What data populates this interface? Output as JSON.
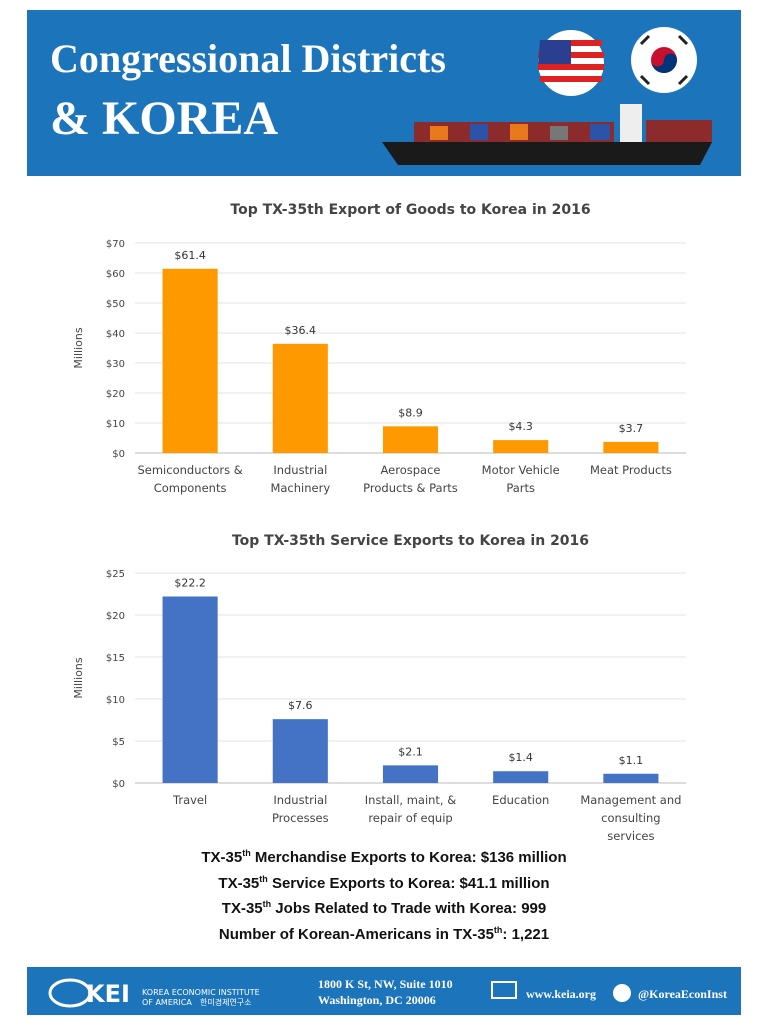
{
  "header": {
    "title_line1": "Congressional Districts",
    "title_line2": "& KOREA"
  },
  "chart_data": [
    {
      "type": "bar",
      "title": "Top TX-35th Export of Goods to Korea in 2016",
      "y_label": "Millions",
      "categories": [
        "Semiconductors & Components",
        "Industrial Machinery",
        "Aerospace Products & Parts",
        "Motor Vehicle Parts",
        "Meat Products"
      ],
      "values": [
        61.4,
        36.4,
        8.9,
        4.3,
        3.7
      ],
      "value_labels": [
        "$61.4",
        "$36.4",
        "$8.9",
        "$4.3",
        "$3.7"
      ],
      "color": "#ff9900",
      "ylim": [
        0,
        70
      ],
      "yticks": [
        {
          "value": 0,
          "label": "$0"
        },
        {
          "value": 10,
          "label": "$10"
        },
        {
          "value": 20,
          "label": "$20"
        },
        {
          "value": 30,
          "label": "$30"
        },
        {
          "value": 40,
          "label": "$40"
        },
        {
          "value": 50,
          "label": "$50"
        },
        {
          "value": 60,
          "label": "$60"
        },
        {
          "value": 70,
          "label": "$70"
        }
      ],
      "grid": true
    },
    {
      "type": "bar",
      "title": "Top TX-35th Service Exports to Korea in 2016",
      "y_label": "Millions",
      "categories": [
        "Travel",
        "Industrial Processes",
        "Install, maint, & repair of equip",
        "Education",
        "Management and consulting services"
      ],
      "values": [
        22.2,
        7.6,
        2.1,
        1.4,
        1.1
      ],
      "value_labels": [
        "$22.2",
        "$7.6",
        "$2.1",
        "$1.4",
        "$1.1"
      ],
      "color": "#4472c4",
      "ylim": [
        0,
        25
      ],
      "yticks": [
        {
          "value": 0,
          "label": "$0"
        },
        {
          "value": 5,
          "label": "$5"
        },
        {
          "value": 10,
          "label": "$10"
        },
        {
          "value": 15,
          "label": "$15"
        },
        {
          "value": 20,
          "label": "$20"
        },
        {
          "value": 25,
          "label": "$25"
        }
      ],
      "grid": true
    }
  ],
  "stats": [
    {
      "pre": "TX-35",
      "sup": "th",
      "post": " Merchandise Exports to Korea: $136 million"
    },
    {
      "pre": "TX-35",
      "sup": "th",
      "post": " Service Exports to Korea: $41.1 million"
    },
    {
      "pre": "TX-35",
      "sup": "th",
      "post": " Jobs Related to Trade with Korea: 999"
    },
    {
      "pre": "Number of Korean-Americans in TX-35",
      "sup": "th",
      "post": ": 1,221"
    }
  ],
  "footer": {
    "logo": "KEI",
    "org_line1": "KOREA ECONOMIC INSTITUTE",
    "org_line2": "OF AMERICA",
    "org_korean": "한미경제연구소",
    "address_line1": "1800 K St, NW, Suite 1010",
    "address_line2": "Washington, DC 20006",
    "website": "www.keia.org",
    "twitter": "@KoreaEconInst"
  }
}
